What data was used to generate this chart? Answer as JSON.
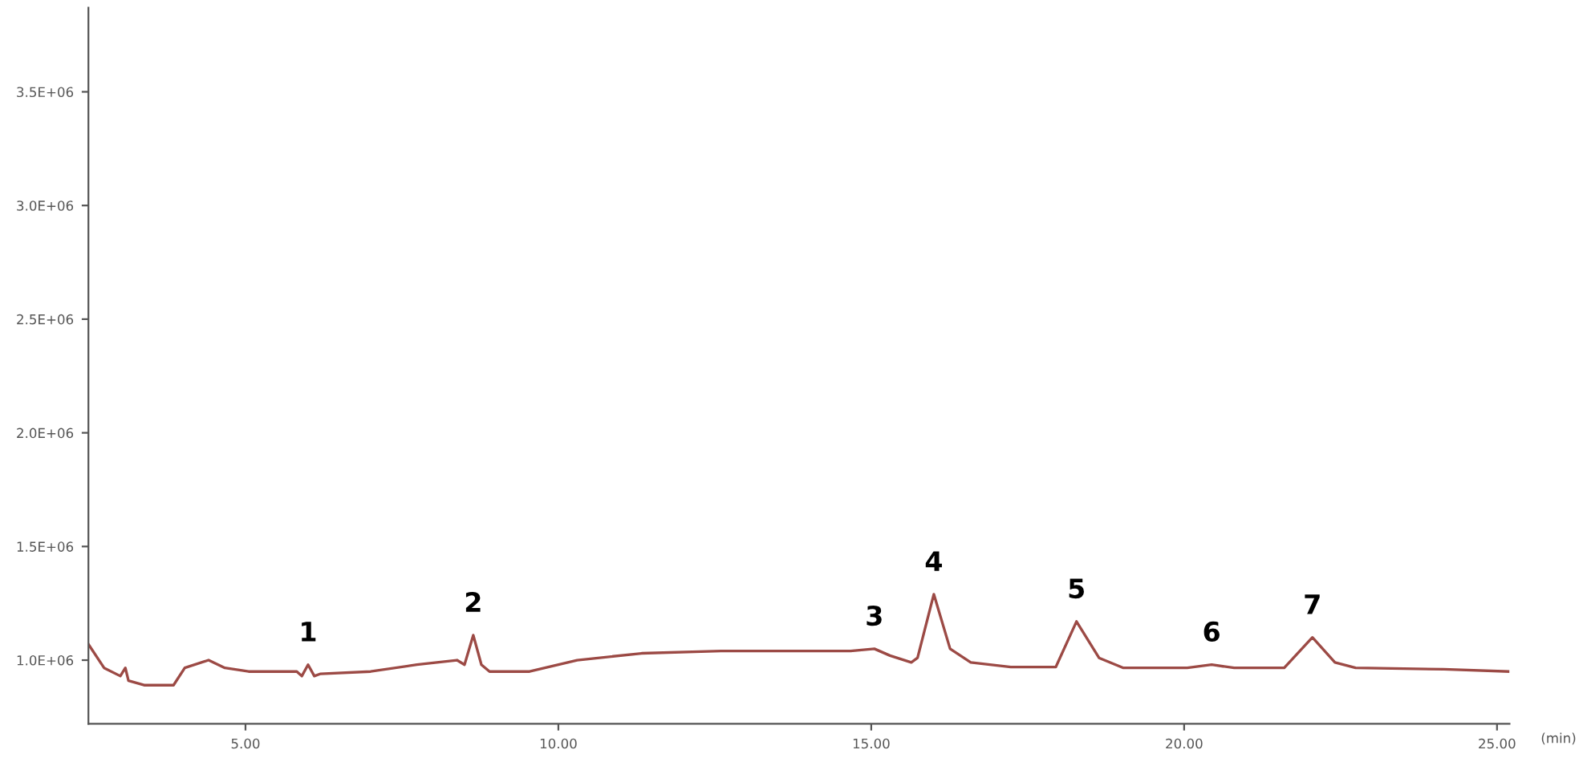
{
  "chart_data": {
    "type": "line",
    "xlabel": "(min)",
    "x": [
      2.49,
      2.74,
      3.0,
      3.08,
      3.13,
      3.38,
      3.85,
      4.03,
      4.41,
      4.67,
      5.05,
      5.82,
      5.9,
      6.0,
      6.1,
      6.2,
      7.0,
      7.74,
      8.38,
      8.5,
      8.64,
      8.77,
      8.9,
      9.54,
      10.3,
      11.33,
      12.6,
      13.9,
      14.67,
      15.05,
      15.3,
      15.64,
      15.74,
      16.0,
      16.26,
      16.59,
      17.23,
      17.95,
      18.28,
      18.64,
      19.03,
      20.05,
      20.44,
      20.8,
      21.6,
      22.05,
      22.41,
      22.74,
      24.15,
      25.18
    ],
    "series": [
      {
        "color": "#9c4a45",
        "values": [
          1070000.0,
          966000.0,
          930000.0,
          966000.0,
          910000.0,
          890000.0,
          890000.0,
          966000.0,
          1000000.0,
          966000.0,
          950000.0,
          950000.0,
          930000.0,
          980000.0,
          930000.0,
          940000.0,
          950000.0,
          980000.0,
          1000000.0,
          980000.0,
          1110000.0,
          980000.0,
          950000.0,
          950000.0,
          1000000.0,
          1030000.0,
          1040000.0,
          1040000.0,
          1040000.0,
          1050000.0,
          1020000.0,
          990000.0,
          1010000.0,
          1290000.0,
          1050000.0,
          990000.0,
          970000.0,
          970000.0,
          1170000.0,
          1010000.0,
          966000.0,
          966000.0,
          980000.0,
          966000.0,
          966000.0,
          1100000.0,
          990000.0,
          966000.0,
          960000.0,
          950000.0
        ]
      }
    ],
    "xlim": [
      2.49,
      25.2
    ],
    "ylim": [
      720000.0,
      3870000.0
    ],
    "xticks": [
      {
        "value": 5,
        "label": "5.00"
      },
      {
        "value": 10,
        "label": "10.00"
      },
      {
        "value": 15,
        "label": "15.00"
      },
      {
        "value": 20,
        "label": "20.00"
      },
      {
        "value": 25,
        "label": "25.00"
      }
    ],
    "yticks": [
      {
        "value": 1000000,
        "label": "1.0E+06"
      },
      {
        "value": 1500000,
        "label": "1.5E+06"
      },
      {
        "value": 2000000,
        "label": "2.0E+06"
      },
      {
        "value": 2500000,
        "label": "2.5E+06"
      },
      {
        "value": 3000000,
        "label": "3.0E+06"
      },
      {
        "value": 3500000,
        "label": "3.5E+06"
      }
    ],
    "grid": false,
    "legend": false,
    "marker": "none",
    "line_style": "solid",
    "annotations": [
      {
        "text": "1",
        "x": 6.0,
        "y": 980000.0
      },
      {
        "text": "2",
        "x": 8.64,
        "y": 1110000.0
      },
      {
        "text": "3",
        "x": 15.05,
        "y": 1050000.0
      },
      {
        "text": "4",
        "x": 16.0,
        "y": 1290000.0
      },
      {
        "text": "5",
        "x": 18.28,
        "y": 1170000.0
      },
      {
        "text": "6",
        "x": 20.44,
        "y": 980000.0
      },
      {
        "text": "7",
        "x": 22.05,
        "y": 1100000.0
      }
    ]
  }
}
